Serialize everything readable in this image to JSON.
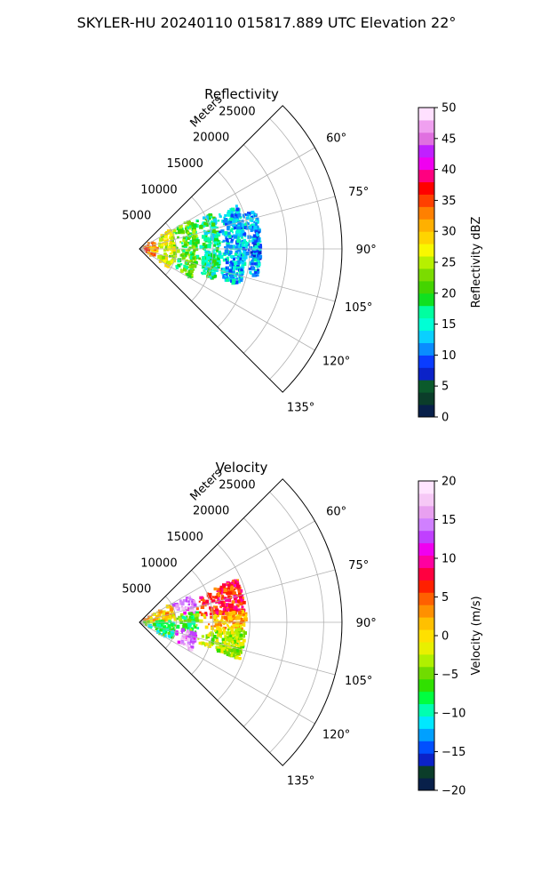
{
  "figure": {
    "suptitle": "SKYLER-HU  20240110  015817.889 UTC Elevation 22°"
  },
  "palettes": {
    "reflectivity": [
      "#08204a",
      "#0b3d2a",
      "#0b5a2c",
      "#0b22c8",
      "#0a3cff",
      "#0a8cff",
      "#0ad0ff",
      "#00ffd5",
      "#00ffa0",
      "#10e020",
      "#44d400",
      "#7bdc00",
      "#b7f000",
      "#f8f800",
      "#ffd400",
      "#ffb000",
      "#ff8000",
      "#ff4000",
      "#ff0000",
      "#ff0080",
      "#f000f0",
      "#c020ff",
      "#e070e0",
      "#f0a0f0",
      "#ffe0ff"
    ],
    "velocity": [
      "#08204a",
      "#0b3d2a",
      "#0b22c8",
      "#0050ff",
      "#00a0ff",
      "#00e8ff",
      "#00ffb0",
      "#00ff40",
      "#30e000",
      "#70dc00",
      "#b0f000",
      "#e8f000",
      "#ffe000",
      "#ffc000",
      "#ff9000",
      "#ff6000",
      "#ff2000",
      "#ff0040",
      "#ff00a0",
      "#f000f0",
      "#c040ff",
      "#d080ff",
      "#e8a0f0",
      "#f6c8f6",
      "#ffe4ff"
    ]
  },
  "chart_data": [
    {
      "type": "heatmap",
      "projection": "polar-sector",
      "title": "Reflectivity",
      "radial_label": "Meters",
      "radial_ticks": [
        5000,
        10000,
        15000,
        20000,
        25000
      ],
      "radial_tick_labels": [
        "5000",
        "10000",
        "15000",
        "20000",
        "25000"
      ],
      "radial_range": [
        0,
        27500
      ],
      "angular_range_deg": [
        45,
        135
      ],
      "angular_ticks_deg": [
        60,
        75,
        90,
        105,
        120,
        135
      ],
      "angular_tick_labels": [
        "60°",
        "75°",
        "90°",
        "105°",
        "120°",
        "135°"
      ],
      "grid": true,
      "colorbar": {
        "label": "Reflectivity dBZ",
        "range": [
          0,
          50
        ],
        "ticks": [
          0,
          5,
          10,
          15,
          20,
          25,
          30,
          35,
          40,
          45,
          50
        ],
        "tick_labels": [
          "0",
          "5",
          "10",
          "15",
          "20",
          "25",
          "30",
          "35",
          "40",
          "45",
          "50"
        ]
      },
      "field_zones": [
        {
          "r": [
            0,
            2500
          ],
          "theta": [
            58,
            122
          ],
          "value": 33
        },
        {
          "r": [
            2500,
            5000
          ],
          "theta": [
            58,
            122
          ],
          "value": 26
        },
        {
          "r": [
            5000,
            8000
          ],
          "theta": [
            60,
            120
          ],
          "value": 21
        },
        {
          "r": [
            8000,
            11000
          ],
          "theta": [
            64,
            112
          ],
          "value": 17
        },
        {
          "r": [
            11000,
            14500
          ],
          "theta": [
            66,
            110
          ],
          "value": 13
        },
        {
          "r": [
            14500,
            16500
          ],
          "theta": [
            72,
            103
          ],
          "value": 12
        }
      ]
    },
    {
      "type": "heatmap",
      "projection": "polar-sector",
      "title": "Velocity",
      "radial_label": "Meters",
      "radial_ticks": [
        5000,
        10000,
        15000,
        20000,
        25000
      ],
      "radial_tick_labels": [
        "5000",
        "10000",
        "15000",
        "20000",
        "25000"
      ],
      "radial_range": [
        0,
        27500
      ],
      "angular_range_deg": [
        45,
        135
      ],
      "angular_ticks_deg": [
        60,
        75,
        90,
        105,
        120,
        135
      ],
      "angular_tick_labels": [
        "60°",
        "75°",
        "90°",
        "105°",
        "120°",
        "135°"
      ],
      "grid": true,
      "colorbar": {
        "label": "Velocity (m/s)",
        "range": [
          -20,
          20
        ],
        "ticks": [
          -20,
          -15,
          -10,
          -5,
          0,
          5,
          10,
          15,
          20
        ],
        "tick_labels": [
          "−20",
          "−15",
          "−10",
          "−5",
          "0",
          "5",
          "10",
          "15",
          "20"
        ]
      },
      "field_zones": [
        {
          "r": [
            0,
            5000
          ],
          "theta": [
            60,
            88
          ],
          "value": 1
        },
        {
          "r": [
            0,
            5000
          ],
          "theta": [
            88,
            120
          ],
          "value": -8
        },
        {
          "r": [
            5000,
            8000
          ],
          "theta": [
            62,
            80
          ],
          "value": 15
        },
        {
          "r": [
            5000,
            8000
          ],
          "theta": [
            80,
            100
          ],
          "value": -6
        },
        {
          "r": [
            5000,
            8000
          ],
          "theta": [
            100,
            118
          ],
          "value": 14
        },
        {
          "r": [
            8000,
            14500
          ],
          "theta": [
            66,
            84
          ],
          "value": 7
        },
        {
          "r": [
            8000,
            14500
          ],
          "theta": [
            84,
            94
          ],
          "value": 2
        },
        {
          "r": [
            8000,
            14500
          ],
          "theta": [
            94,
            110
          ],
          "value": -3
        }
      ]
    }
  ]
}
